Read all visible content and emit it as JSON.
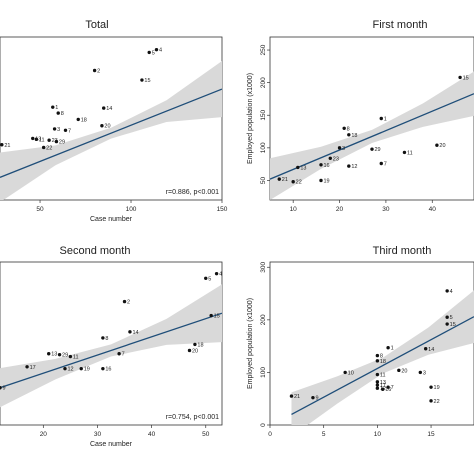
{
  "chart_data": [
    {
      "type": "scatter",
      "title": "Total",
      "xlabel": "Case number",
      "ylabel": "",
      "xlim": [
        28,
        150
      ],
      "ylim": [
        -60,
        300
      ],
      "xticks": [
        50,
        100,
        150
      ],
      "yticks": [],
      "annotation": "r=0.886, p<0.001",
      "colors": {
        "points": "#111111",
        "fit": "#1f4e79",
        "band": "#d9d9d9"
      },
      "fit": {
        "x": [
          28,
          150
        ],
        "y": [
          -10,
          185
        ],
        "band_start": 28,
        "band_width": [
          55,
          22,
          12,
          24,
          62
        ]
      },
      "points": [
        {
          "label": "4",
          "x": 114,
          "y": 272
        },
        {
          "label": "5",
          "x": 110,
          "y": 266
        },
        {
          "label": "2",
          "x": 80,
          "y": 226
        },
        {
          "label": "15",
          "x": 106,
          "y": 205
        },
        {
          "label": "1",
          "x": 57,
          "y": 145
        },
        {
          "label": "14",
          "x": 85,
          "y": 143
        },
        {
          "label": "8",
          "x": 60,
          "y": 132
        },
        {
          "label": "18",
          "x": 71,
          "y": 118
        },
        {
          "label": "20",
          "x": 84,
          "y": 104
        },
        {
          "label": "3",
          "x": 58,
          "y": 97
        },
        {
          "label": "7",
          "x": 64,
          "y": 94
        },
        {
          "label": "11",
          "x": 48,
          "y": 74
        },
        {
          "label": "23",
          "x": 55,
          "y": 72
        },
        {
          "label": "29",
          "x": 59,
          "y": 69
        },
        {
          "label": "13",
          "x": 46,
          "y": 76
        },
        {
          "label": "22",
          "x": 52,
          "y": 56
        },
        {
          "label": "21",
          "x": 29,
          "y": 62
        }
      ]
    },
    {
      "type": "scatter",
      "title": "First month",
      "xlabel": "",
      "ylabel": "Employed population (x1000)",
      "xlim": [
        5,
        49
      ],
      "ylim": [
        20,
        270
      ],
      "xticks": [
        10,
        20,
        30,
        40
      ],
      "yticks": [
        50,
        100,
        150,
        200,
        250
      ],
      "annotation": "",
      "colors": {
        "points": "#111111",
        "fit": "#1f4e79",
        "band": "#d9d9d9"
      },
      "fit": {
        "x": [
          5,
          49
        ],
        "y": [
          52,
          183
        ],
        "band_start": 5,
        "band_width": [
          32,
          17,
          10,
          18,
          34
        ]
      },
      "points": [
        {
          "label": "15",
          "x": 46,
          "y": 208
        },
        {
          "label": "1",
          "x": 29,
          "y": 145
        },
        {
          "label": "8",
          "x": 21,
          "y": 130
        },
        {
          "label": "18",
          "x": 22,
          "y": 120
        },
        {
          "label": "20",
          "x": 41,
          "y": 104
        },
        {
          "label": "3",
          "x": 20,
          "y": 100
        },
        {
          "label": "29",
          "x": 27,
          "y": 98
        },
        {
          "label": "11",
          "x": 34,
          "y": 93
        },
        {
          "label": "23",
          "x": 18,
          "y": 84
        },
        {
          "label": "7",
          "x": 29,
          "y": 76
        },
        {
          "label": "12",
          "x": 22,
          "y": 72
        },
        {
          "label": "13",
          "x": 11,
          "y": 70
        },
        {
          "label": "16",
          "x": 16,
          "y": 74
        },
        {
          "label": "19",
          "x": 16,
          "y": 50
        },
        {
          "label": "22",
          "x": 10,
          "y": 48
        },
        {
          "label": "21",
          "x": 7,
          "y": 52
        }
      ]
    },
    {
      "type": "scatter",
      "title": "Second month",
      "xlabel": "Case number",
      "ylabel": "",
      "xlim": [
        12,
        53
      ],
      "ylim": [
        -35,
        315
      ],
      "xticks": [
        20,
        30,
        40,
        50
      ],
      "yticks": [],
      "annotation": "r=0.754, p<0.001",
      "colors": {
        "points": "#111111",
        "fit": "#1f4e79",
        "band": "#d9d9d9"
      },
      "fit": {
        "x": [
          12,
          53
        ],
        "y": [
          45,
          205
        ],
        "band_start": 12,
        "band_width": [
          42,
          22,
          13,
          28,
          62
        ]
      },
      "points": [
        {
          "label": "4",
          "x": 52,
          "y": 290
        },
        {
          "label": "5",
          "x": 50,
          "y": 280
        },
        {
          "label": "2",
          "x": 35,
          "y": 230
        },
        {
          "label": "15",
          "x": 51,
          "y": 200
        },
        {
          "label": "14",
          "x": 36,
          "y": 165
        },
        {
          "label": "8",
          "x": 31,
          "y": 152
        },
        {
          "label": "18",
          "x": 48,
          "y": 138
        },
        {
          "label": "20",
          "x": 47,
          "y": 125
        },
        {
          "label": "7",
          "x": 34,
          "y": 118
        },
        {
          "label": "13",
          "x": 21,
          "y": 118
        },
        {
          "label": "29",
          "x": 23,
          "y": 116
        },
        {
          "label": "11",
          "x": 25,
          "y": 112
        },
        {
          "label": "17",
          "x": 17,
          "y": 90
        },
        {
          "label": "12",
          "x": 24,
          "y": 86
        },
        {
          "label": "19",
          "x": 27,
          "y": 86
        },
        {
          "label": "16",
          "x": 31,
          "y": 86
        },
        {
          "label": "9",
          "x": 12,
          "y": 45
        }
      ]
    },
    {
      "type": "scatter",
      "title": "Third month",
      "xlabel": "",
      "ylabel": "Employed population (x1000)",
      "xlim": [
        0,
        19
      ],
      "ylim": [
        0,
        310
      ],
      "xticks": [
        0,
        5,
        10,
        15
      ],
      "yticks": [
        0,
        100,
        200,
        300
      ],
      "annotation": "",
      "colors": {
        "points": "#111111",
        "fit": "#1f4e79",
        "band": "#d9d9d9"
      },
      "fit": {
        "x": [
          2,
          19
        ],
        "y": [
          20,
          206
        ],
        "band_start": 2,
        "band_width": [
          42,
          26,
          15,
          26,
          50
        ]
      },
      "points": [
        {
          "label": "4",
          "x": 16.5,
          "y": 255
        },
        {
          "label": "5",
          "x": 16.5,
          "y": 205
        },
        {
          "label": "15",
          "x": 16.5,
          "y": 192
        },
        {
          "label": "1",
          "x": 11,
          "y": 147
        },
        {
          "label": "14",
          "x": 14.5,
          "y": 145
        },
        {
          "label": "8",
          "x": 10,
          "y": 132
        },
        {
          "label": "18",
          "x": 10,
          "y": 122
        },
        {
          "label": "20",
          "x": 12,
          "y": 104
        },
        {
          "label": "10",
          "x": 7,
          "y": 100
        },
        {
          "label": "3",
          "x": 14,
          "y": 100
        },
        {
          "label": "11",
          "x": 10,
          "y": 96
        },
        {
          "label": "13",
          "x": 10,
          "y": 82
        },
        {
          "label": "17",
          "x": 10,
          "y": 76
        },
        {
          "label": "12",
          "x": 10,
          "y": 70
        },
        {
          "label": "7",
          "x": 11,
          "y": 72
        },
        {
          "label": "16",
          "x": 10.5,
          "y": 68
        },
        {
          "label": "19",
          "x": 15,
          "y": 72
        },
        {
          "label": "22",
          "x": 15,
          "y": 46
        },
        {
          "label": "21",
          "x": 2,
          "y": 55
        },
        {
          "label": "9",
          "x": 4,
          "y": 52
        }
      ]
    }
  ]
}
